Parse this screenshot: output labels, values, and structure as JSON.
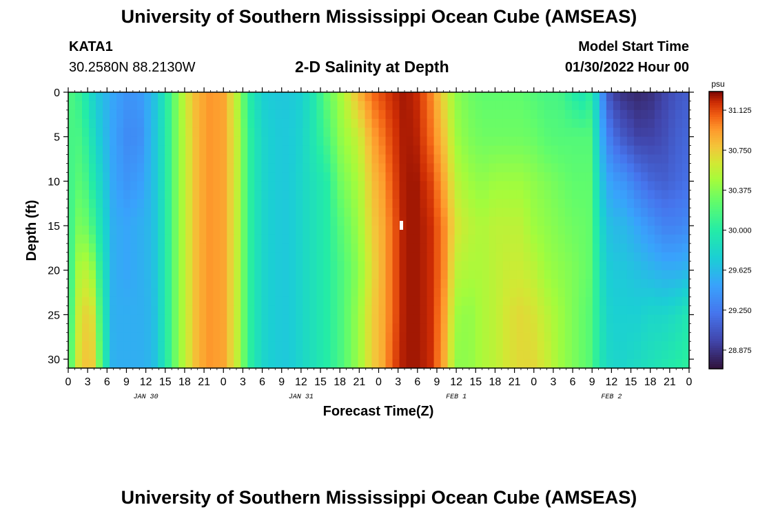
{
  "header": {
    "title": "University of Southern Mississippi Ocean Cube (AMSEAS)",
    "station_id": "KATA1",
    "coordinates": "30.2580N  88.2130W",
    "plot_title": "2-D Salinity at Depth",
    "start_time_label": "Model Start Time",
    "start_time_value": "01/30/2022 Hour 00"
  },
  "footer": {
    "title": "University of Southern Mississippi Ocean Cube (AMSEAS)"
  },
  "chart_data": {
    "type": "heatmap",
    "title": "2-D Salinity at Depth",
    "xlabel": "Forecast Time(Z)",
    "ylabel": "Depth (ft)",
    "x_range_hours": [
      0,
      96
    ],
    "y_range_ft": [
      0,
      31
    ],
    "x_tick_hours": [
      0,
      3,
      6,
      9,
      12,
      15,
      18,
      21,
      24,
      27,
      30,
      33,
      36,
      39,
      42,
      45,
      48,
      51,
      54,
      57,
      60,
      63,
      66,
      69,
      72,
      75,
      78,
      81,
      84,
      87,
      90,
      93,
      96
    ],
    "x_tick_labels": [
      "0",
      "3",
      "6",
      "9",
      "12",
      "15",
      "18",
      "21",
      "0",
      "3",
      "6",
      "9",
      "12",
      "15",
      "18",
      "21",
      "0",
      "3",
      "6",
      "9",
      "12",
      "15",
      "18",
      "21",
      "0",
      "3",
      "6",
      "9",
      "12",
      "15",
      "18",
      "21",
      "0"
    ],
    "day_labels": [
      {
        "hour": 12,
        "label": "JAN 30"
      },
      {
        "hour": 36,
        "label": "JAN 31"
      },
      {
        "hour": 60,
        "label": "FEB 1"
      },
      {
        "hour": 84,
        "label": "FEB 2"
      }
    ],
    "y_tick_values": [
      0,
      5,
      10,
      15,
      20,
      25,
      30
    ],
    "y_tick_labels": [
      "0",
      "5",
      "10",
      "15",
      "20",
      "25",
      "30"
    ],
    "colorbar": {
      "units": "psu",
      "min": 28.7,
      "max": 31.3,
      "tick_values": [
        28.875,
        29.25,
        29.625,
        30.0,
        30.375,
        30.75,
        31.125
      ],
      "tick_labels": [
        "28.875",
        "29.250",
        "29.625",
        "30.000",
        "30.375",
        "30.750",
        "31.125"
      ]
    },
    "depths_ft": [
      0,
      5,
      10,
      15,
      20,
      25,
      31
    ],
    "time_hours": [
      0,
      2,
      4,
      5,
      7,
      9,
      11,
      13,
      15,
      17,
      19,
      20,
      22,
      24,
      26,
      28,
      30,
      32,
      34,
      36,
      38,
      40,
      42,
      45,
      47,
      49,
      50,
      52,
      54,
      56,
      58,
      60,
      62,
      64,
      66,
      68,
      70,
      72,
      74,
      76,
      78,
      80,
      81,
      82,
      84,
      86,
      88,
      90,
      92,
      94,
      96
    ],
    "values_psu": [
      [
        30.2,
        30.15,
        30.1,
        30.05,
        30.0,
        30.0,
        30.1
      ],
      [
        30.05,
        30.15,
        30.25,
        30.4,
        30.6,
        30.75,
        30.8
      ],
      [
        29.75,
        29.85,
        29.95,
        30.1,
        30.4,
        30.65,
        30.75
      ],
      [
        29.65,
        29.7,
        29.8,
        29.9,
        30.0,
        30.1,
        30.2
      ],
      [
        29.5,
        29.48,
        29.5,
        29.55,
        29.55,
        29.55,
        29.55
      ],
      [
        29.4,
        29.35,
        29.4,
        29.5,
        29.5,
        29.55,
        29.55
      ],
      [
        29.42,
        29.35,
        29.45,
        29.55,
        29.55,
        29.55,
        29.55
      ],
      [
        29.6,
        29.62,
        29.62,
        29.62,
        29.62,
        29.6,
        29.6
      ],
      [
        29.95,
        29.95,
        29.95,
        29.95,
        29.95,
        29.95,
        29.95
      ],
      [
        30.4,
        30.4,
        30.4,
        30.4,
        30.4,
        30.4,
        30.4
      ],
      [
        30.75,
        30.7,
        30.7,
        30.7,
        30.7,
        30.7,
        30.7
      ],
      [
        30.85,
        30.85,
        30.85,
        30.85,
        30.85,
        30.85,
        30.85
      ],
      [
        30.95,
        30.95,
        30.95,
        30.95,
        30.95,
        30.95,
        30.95
      ],
      [
        30.9,
        30.9,
        30.9,
        30.9,
        30.9,
        30.9,
        30.9
      ],
      [
        30.55,
        30.6,
        30.6,
        30.6,
        30.6,
        30.6,
        30.6
      ],
      [
        30.0,
        30.05,
        30.05,
        30.05,
        30.05,
        30.05,
        30.05
      ],
      [
        29.75,
        29.8,
        29.8,
        29.8,
        29.8,
        29.8,
        29.8
      ],
      [
        29.7,
        29.72,
        29.72,
        29.72,
        29.72,
        29.72,
        29.72
      ],
      [
        29.7,
        29.7,
        29.7,
        29.7,
        29.7,
        29.7,
        29.7
      ],
      [
        29.75,
        29.78,
        29.8,
        29.8,
        29.8,
        29.8,
        29.8
      ],
      [
        29.95,
        29.95,
        29.9,
        29.9,
        29.9,
        29.9,
        29.9
      ],
      [
        30.25,
        30.15,
        30.0,
        30.0,
        30.0,
        30.0,
        30.0
      ],
      [
        30.45,
        30.4,
        30.3,
        30.2,
        30.15,
        30.15,
        30.15
      ],
      [
        30.85,
        30.6,
        30.5,
        30.45,
        30.4,
        30.45,
        30.45
      ],
      [
        31.05,
        30.9,
        30.8,
        30.75,
        30.7,
        30.75,
        30.75
      ],
      [
        31.15,
        31.05,
        30.95,
        30.9,
        30.9,
        30.9,
        30.9
      ],
      [
        31.2,
        31.15,
        31.1,
        31.05,
        31.05,
        31.05,
        31.1
      ],
      [
        31.25,
        31.25,
        31.25,
        31.25,
        31.25,
        31.25,
        31.25
      ],
      [
        31.2,
        31.22,
        31.25,
        31.25,
        31.25,
        31.25,
        31.25
      ],
      [
        31.0,
        31.05,
        31.15,
        31.2,
        31.2,
        31.2,
        31.2
      ],
      [
        30.7,
        30.8,
        30.9,
        31.0,
        31.0,
        30.95,
        30.9
      ],
      [
        30.4,
        30.45,
        30.55,
        30.65,
        30.55,
        30.45,
        30.4
      ],
      [
        30.3,
        30.35,
        30.45,
        30.55,
        30.5,
        30.4,
        30.4
      ],
      [
        30.25,
        30.3,
        30.4,
        30.5,
        30.5,
        30.5,
        30.5
      ],
      [
        30.25,
        30.3,
        30.45,
        30.55,
        30.55,
        30.55,
        30.55
      ],
      [
        30.25,
        30.3,
        30.45,
        30.55,
        30.6,
        30.65,
        30.65
      ],
      [
        30.25,
        30.3,
        30.45,
        30.55,
        30.6,
        30.7,
        30.7
      ],
      [
        30.2,
        30.28,
        30.4,
        30.45,
        30.55,
        30.65,
        30.7
      ],
      [
        30.15,
        30.22,
        30.35,
        30.4,
        30.45,
        30.55,
        30.6
      ],
      [
        30.15,
        30.2,
        30.3,
        30.35,
        30.4,
        30.45,
        30.45
      ],
      [
        30.0,
        30.2,
        30.25,
        30.3,
        30.35,
        30.35,
        30.35
      ],
      [
        29.9,
        30.2,
        30.25,
        30.28,
        30.28,
        30.25,
        30.25
      ],
      [
        30.1,
        30.2,
        30.25,
        30.25,
        30.25,
        30.2,
        30.2
      ],
      [
        29.55,
        29.65,
        29.75,
        29.85,
        29.9,
        29.95,
        29.95
      ],
      [
        28.95,
        29.2,
        29.45,
        29.62,
        29.7,
        29.75,
        29.8
      ],
      [
        28.85,
        29.05,
        29.4,
        29.6,
        29.7,
        29.75,
        29.8
      ],
      [
        28.82,
        28.95,
        29.25,
        29.5,
        29.65,
        29.75,
        29.85
      ],
      [
        28.85,
        28.95,
        29.15,
        29.4,
        29.6,
        29.8,
        29.9
      ],
      [
        28.95,
        29.0,
        29.1,
        29.3,
        29.55,
        29.8,
        29.95
      ],
      [
        29.05,
        29.1,
        29.15,
        29.3,
        29.55,
        29.85,
        30.0
      ],
      [
        29.1,
        29.15,
        29.2,
        29.35,
        29.6,
        29.95,
        30.05
      ]
    ]
  }
}
